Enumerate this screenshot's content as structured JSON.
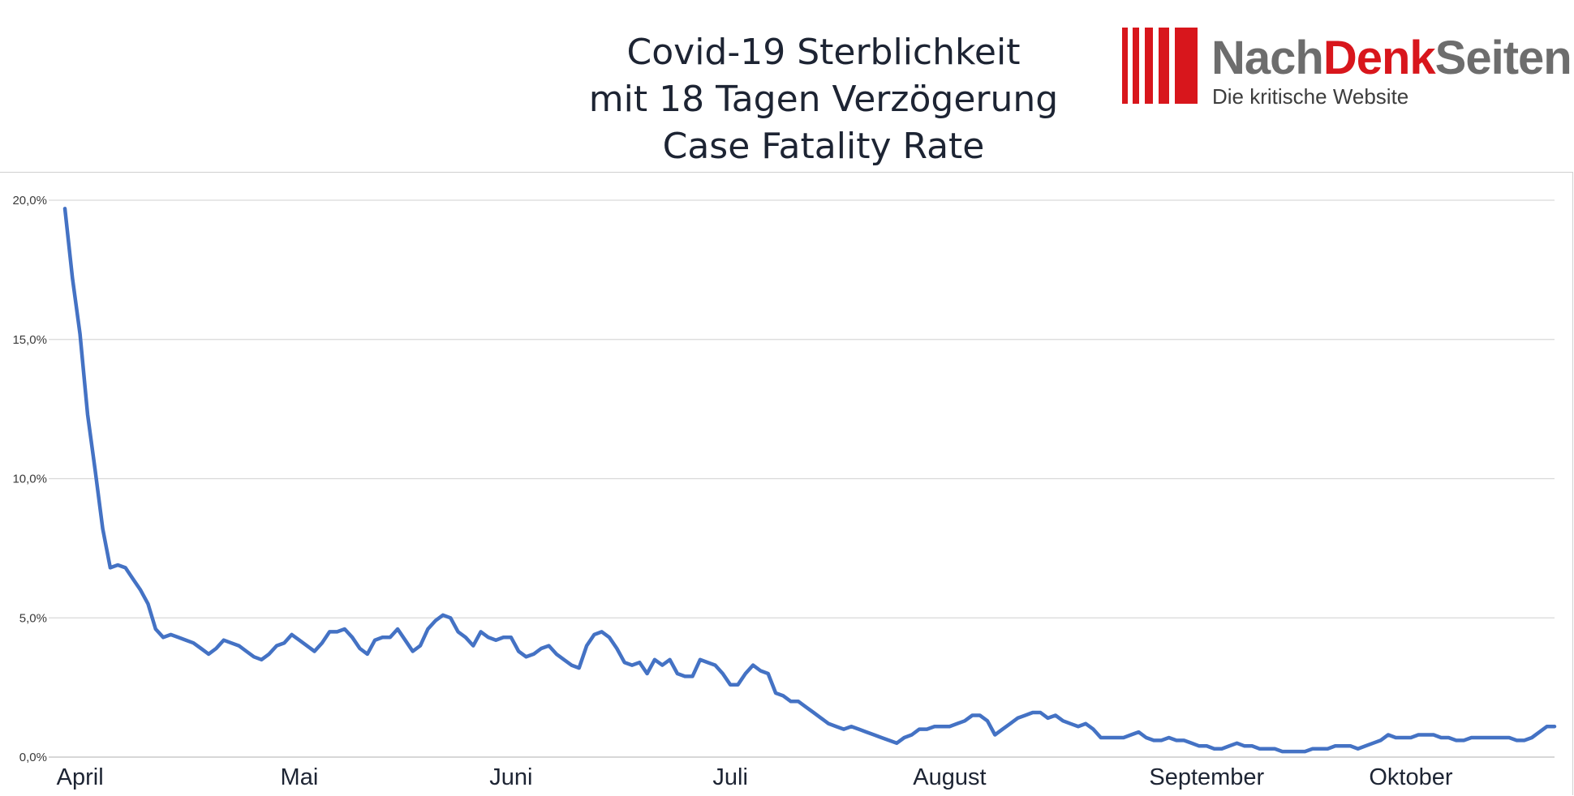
{
  "header": {
    "title_lines": [
      "Covid-19 Sterblichkeit",
      "mit 18 Tagen Verzögerung",
      "Case Fatality Rate"
    ]
  },
  "logo": {
    "name_part1": "Nach",
    "name_part2": "Denk",
    "name_part3": "Seiten",
    "tagline": "Die kritische Website",
    "color_red": "#d8161c",
    "color_grey": "#6d6d6d"
  },
  "chart_data": {
    "type": "line",
    "title": "Covid-19 Sterblichkeit mit 18 Tagen Verzögerung Case Fatality Rate",
    "xlabel": "",
    "ylabel": "",
    "ylim": [
      0,
      20
    ],
    "yticks": [
      0,
      5,
      10,
      15,
      20
    ],
    "ytick_labels": [
      "0,0%",
      "5,0%",
      "10,0%",
      "15,0%",
      "20,0%"
    ],
    "x_month_labels": [
      "April",
      "Mai",
      "Juni",
      "Juli",
      "August",
      "September",
      "Oktober"
    ],
    "x_month_label_day_index": [
      2,
      31,
      59,
      88,
      117,
      151,
      178
    ],
    "grid": true,
    "legend": "none",
    "line_color": "#4472c4",
    "series": [
      {
        "values": [
          19.7,
          17.2,
          15.2,
          12.3,
          10.3,
          8.2,
          6.8,
          6.9,
          6.8,
          6.4,
          6.0,
          5.5,
          4.6,
          4.3,
          4.4,
          4.3,
          4.2,
          4.1,
          3.9,
          3.7,
          3.9,
          4.2,
          4.1,
          4.0,
          3.8,
          3.6,
          3.5,
          3.7,
          4.0,
          4.1,
          4.4,
          4.2,
          4.0,
          3.8,
          4.1,
          4.5,
          4.5,
          4.6,
          4.3,
          3.9,
          3.7,
          4.2,
          4.3,
          4.3,
          4.6,
          4.2,
          3.8,
          4.0,
          4.6,
          4.9,
          5.1,
          5.0,
          4.5,
          4.3,
          4.0,
          4.5,
          4.3,
          4.2,
          4.3,
          4.3,
          3.8,
          3.6,
          3.7,
          3.9,
          4.0,
          3.7,
          3.5,
          3.3,
          3.2,
          4.0,
          4.4,
          4.5,
          4.3,
          3.9,
          3.4,
          3.3,
          3.4,
          3.0,
          3.5,
          3.3,
          3.5,
          3.0,
          2.9,
          2.9,
          3.5,
          3.4,
          3.3,
          3.0,
          2.6,
          2.6,
          3.0,
          3.3,
          3.1,
          3.0,
          2.3,
          2.2,
          2.0,
          2.0,
          1.8,
          1.6,
          1.4,
          1.2,
          1.1,
          1.0,
          1.1,
          1.0,
          0.9,
          0.8,
          0.7,
          0.6,
          0.5,
          0.7,
          0.8,
          1.0,
          1.0,
          1.1,
          1.1,
          1.1,
          1.2,
          1.3,
          1.5,
          1.5,
          1.3,
          0.8,
          1.0,
          1.2,
          1.4,
          1.5,
          1.6,
          1.6,
          1.4,
          1.5,
          1.3,
          1.2,
          1.1,
          1.2,
          1.0,
          0.7,
          0.7,
          0.7,
          0.7,
          0.8,
          0.9,
          0.7,
          0.6,
          0.6,
          0.7,
          0.6,
          0.6,
          0.5,
          0.4,
          0.4,
          0.3,
          0.3,
          0.4,
          0.5,
          0.4,
          0.4,
          0.3,
          0.3,
          0.3,
          0.2,
          0.2,
          0.2,
          0.2,
          0.3,
          0.3,
          0.3,
          0.4,
          0.4,
          0.4,
          0.3,
          0.4,
          0.5,
          0.6,
          0.8,
          0.7,
          0.7,
          0.7,
          0.8,
          0.8,
          0.8,
          0.7,
          0.7,
          0.6,
          0.6,
          0.7,
          0.7,
          0.7,
          0.7,
          0.7,
          0.7,
          0.6,
          0.6,
          0.7,
          0.9,
          1.1,
          1.1
        ]
      }
    ]
  }
}
